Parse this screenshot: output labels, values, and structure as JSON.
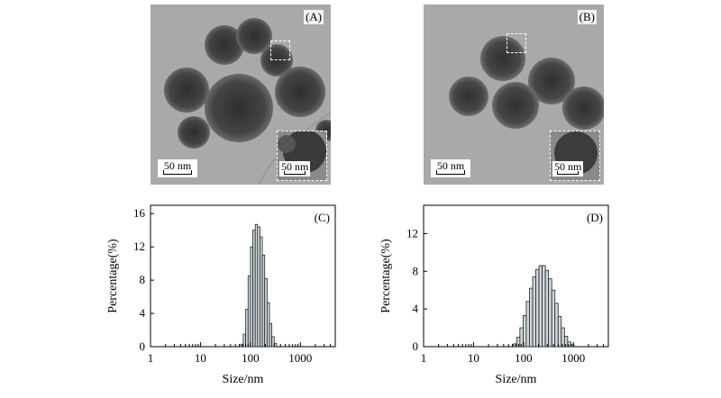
{
  "panels": {
    "a": {
      "label": "(A)",
      "scale_bar": "50 nm",
      "inset_scale_bar": "50 nm"
    },
    "b": {
      "label": "(B)",
      "scale_bar": "50 nm",
      "inset_scale_bar": "50 nm"
    }
  },
  "chart_data": [
    {
      "type": "bar",
      "panel_label": "(C)",
      "xlabel": "Size/nm",
      "ylabel": "Percentage(%)",
      "x_scale": "log",
      "xlim": [
        1,
        5000
      ],
      "ylim": [
        0,
        17
      ],
      "x_ticks": [
        "1",
        "10",
        "100",
        "1000"
      ],
      "y_ticks": [
        "0",
        "4",
        "8",
        "12",
        "16"
      ],
      "bar_color": "#cfd8dc",
      "bins": [
        {
          "x": 68,
          "y": 0.3
        },
        {
          "x": 76,
          "y": 1.5
        },
        {
          "x": 85,
          "y": 4.5
        },
        {
          "x": 95,
          "y": 8.5
        },
        {
          "x": 106,
          "y": 12.0
        },
        {
          "x": 118,
          "y": 14.0
        },
        {
          "x": 132,
          "y": 14.7
        },
        {
          "x": 147,
          "y": 14.4
        },
        {
          "x": 164,
          "y": 13.2
        },
        {
          "x": 183,
          "y": 11.0
        },
        {
          "x": 204,
          "y": 8.2
        },
        {
          "x": 228,
          "y": 5.3
        },
        {
          "x": 254,
          "y": 2.8
        },
        {
          "x": 283,
          "y": 1.2
        },
        {
          "x": 316,
          "y": 0.4
        }
      ]
    },
    {
      "type": "bar",
      "panel_label": "(D)",
      "xlabel": "Size/nm",
      "ylabel": "Percentage(%)",
      "x_scale": "log",
      "xlim": [
        1,
        5000
      ],
      "ylim": [
        0,
        15
      ],
      "x_ticks": [
        "1",
        "10",
        "100",
        "1000"
      ],
      "y_ticks": [
        "0",
        "4",
        "8",
        "12"
      ],
      "bar_color": "#cfd8dc",
      "bins": [
        {
          "x": 68,
          "y": 0.3
        },
        {
          "x": 79,
          "y": 1.0
        },
        {
          "x": 91,
          "y": 2.0
        },
        {
          "x": 106,
          "y": 3.3
        },
        {
          "x": 122,
          "y": 4.8
        },
        {
          "x": 142,
          "y": 6.2
        },
        {
          "x": 164,
          "y": 7.4
        },
        {
          "x": 190,
          "y": 8.2
        },
        {
          "x": 220,
          "y": 8.6
        },
        {
          "x": 255,
          "y": 8.6
        },
        {
          "x": 295,
          "y": 8.1
        },
        {
          "x": 342,
          "y": 7.2
        },
        {
          "x": 396,
          "y": 6.0
        },
        {
          "x": 459,
          "y": 4.6
        },
        {
          "x": 531,
          "y": 3.2
        },
        {
          "x": 615,
          "y": 2.0
        },
        {
          "x": 712,
          "y": 1.1
        },
        {
          "x": 825,
          "y": 0.5
        },
        {
          "x": 955,
          "y": 0.2
        }
      ]
    }
  ]
}
